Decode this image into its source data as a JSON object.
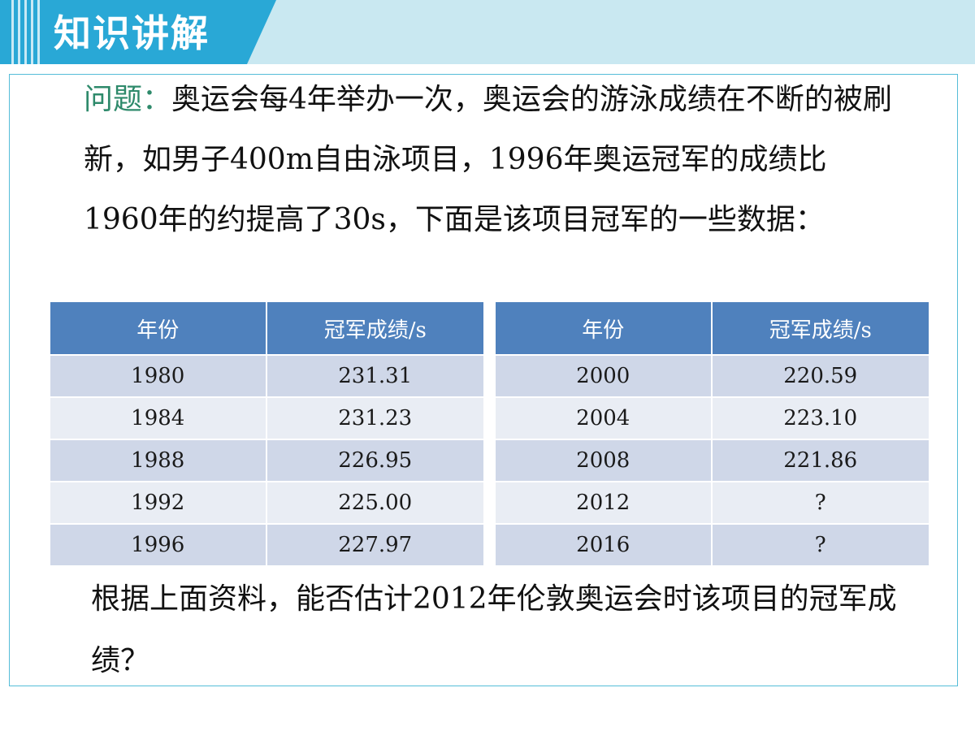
{
  "header": {
    "title": "知识讲解"
  },
  "intro": {
    "label": "问题：",
    "text": "奥运会每4年举办一次，奥运会的游泳成绩在不断的被刷新，如男子400m自由泳项目，1996年奥运冠军的成绩比1960年的约提高了30s，下面是该项目冠军的一些数据："
  },
  "table_left": {
    "headers": [
      "年份",
      "冠军成绩/s"
    ],
    "rows": [
      [
        "1980",
        "231.31"
      ],
      [
        "1984",
        "231.23"
      ],
      [
        "1988",
        "226.95"
      ],
      [
        "1992",
        "225.00"
      ],
      [
        "1996",
        "227.97"
      ]
    ]
  },
  "table_right": {
    "headers": [
      "年份",
      "冠军成绩/s"
    ],
    "rows": [
      [
        "2000",
        "220.59"
      ],
      [
        "2004",
        "223.10"
      ],
      [
        "2008",
        "221.86"
      ],
      [
        "2012",
        "?"
      ],
      [
        "2016",
        "?"
      ]
    ]
  },
  "question": "根据上面资料，能否估计2012年伦敦奥运会时该项目的冠军成绩？",
  "colors": {
    "header_bg": "#c9e8f1",
    "banner": "#29a8d6",
    "table_header": "#4f81bd",
    "row_dark": "#cfd7e8",
    "row_light": "#e9edf4",
    "label_green": "#2e8a6b",
    "frame_border": "#55bdd8"
  }
}
